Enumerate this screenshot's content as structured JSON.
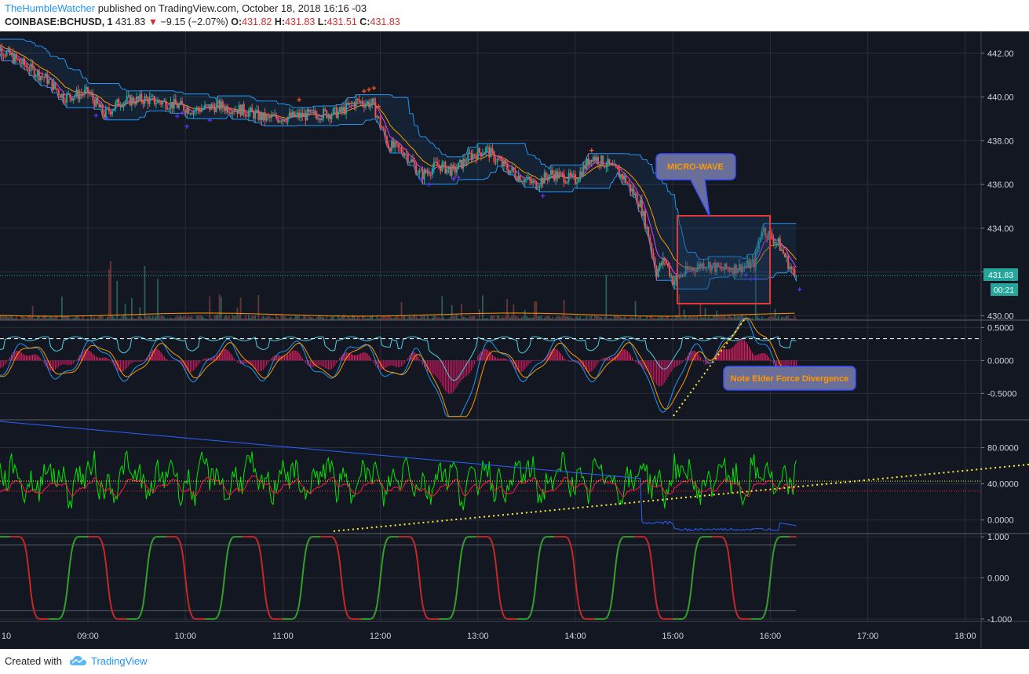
{
  "header": {
    "author": "TheHumbleWatcher",
    "published": "published on TradingView.com, October 18, 2018 16:16 -03",
    "symbol": "COINBASE:BCHUSD, 1",
    "last": "431.83",
    "change_icon": "down-triangle-icon",
    "change": "−9.15 (−2.07%)",
    "o_label": "O:",
    "o_value": "431.82",
    "h_label": "H:",
    "h_value": "431.83",
    "l_label": "L:",
    "l_value": "431.51",
    "c_label": "C:",
    "c_value": "431.83"
  },
  "footer": {
    "created_with": "Created with",
    "brand": "TradingView",
    "brand_icon": "tradingview-cloud-icon"
  },
  "annotations": {
    "micro_wave": "MICRO-WAVE",
    "divergence": "Note Elder Force Divergence"
  },
  "price_badge": {
    "value": "431.83",
    "timer": "00:21"
  },
  "colors": {
    "background": "#131722",
    "up": "#26a69a",
    "down": "#ef5350",
    "channel": "#2196f3",
    "annotation_text": "#ff9800",
    "callout_fill": "#6a6f9a",
    "highlight_box": "#e53935",
    "trendline": "#ffeb3b"
  },
  "chart_data": [
    {
      "type": "candlestick",
      "pane": "price",
      "x_ticks": [
        "10",
        "09:00",
        "10:00",
        "11:00",
        "12:00",
        "13:00",
        "14:00",
        "15:00",
        "16:00",
        "17:00",
        "18:00"
      ],
      "y_ticks": [
        "442.00",
        "440.00",
        "438.00",
        "436.00",
        "434.00",
        "432.00",
        "430.00"
      ],
      "ylim": [
        429.8,
        443.0
      ],
      "last_price": 431.83,
      "close_path": [
        {
          "t": "08:00",
          "y": 442.5
        },
        {
          "t": "08:20",
          "y": 441.5
        },
        {
          "t": "08:35",
          "y": 440.8
        },
        {
          "t": "08:45",
          "y": 440.0
        },
        {
          "t": "09:00",
          "y": 440.2
        },
        {
          "t": "09:10",
          "y": 439.2
        },
        {
          "t": "09:20",
          "y": 439.8
        },
        {
          "t": "09:35",
          "y": 439.9
        },
        {
          "t": "09:50",
          "y": 439.7
        },
        {
          "t": "10:05",
          "y": 439.4
        },
        {
          "t": "10:20",
          "y": 439.6
        },
        {
          "t": "10:35",
          "y": 439.4
        },
        {
          "t": "10:50",
          "y": 439.0
        },
        {
          "t": "11:05",
          "y": 439.1
        },
        {
          "t": "11:20",
          "y": 439.2
        },
        {
          "t": "11:35",
          "y": 439.3
        },
        {
          "t": "11:45",
          "y": 439.8
        },
        {
          "t": "11:55",
          "y": 439.7
        },
        {
          "t": "12:05",
          "y": 437.8
        },
        {
          "t": "12:15",
          "y": 437.5
        },
        {
          "t": "12:25",
          "y": 436.4
        },
        {
          "t": "12:35",
          "y": 436.9
        },
        {
          "t": "12:45",
          "y": 436.6
        },
        {
          "t": "12:55",
          "y": 437.3
        },
        {
          "t": "13:05",
          "y": 437.6
        },
        {
          "t": "13:15",
          "y": 436.9
        },
        {
          "t": "13:25",
          "y": 436.4
        },
        {
          "t": "13:35",
          "y": 436.0
        },
        {
          "t": "13:45",
          "y": 436.5
        },
        {
          "t": "14:00",
          "y": 436.2
        },
        {
          "t": "14:10",
          "y": 437.3
        },
        {
          "t": "14:20",
          "y": 436.9
        },
        {
          "t": "14:30",
          "y": 436.3
        },
        {
          "t": "14:40",
          "y": 435.1
        },
        {
          "t": "14:45",
          "y": 433.7
        },
        {
          "t": "14:50",
          "y": 432.0
        },
        {
          "t": "14:55",
          "y": 432.6
        },
        {
          "t": "15:00",
          "y": 431.6
        },
        {
          "t": "15:10",
          "y": 432.1
        },
        {
          "t": "15:20",
          "y": 432.4
        },
        {
          "t": "15:30",
          "y": 432.1
        },
        {
          "t": "15:40",
          "y": 432.2
        },
        {
          "t": "15:50",
          "y": 432.4
        },
        {
          "t": "15:55",
          "y": 434.0
        },
        {
          "t": "16:05",
          "y": 433.3
        },
        {
          "t": "16:15",
          "y": 431.8
        }
      ]
    },
    {
      "type": "line",
      "pane": "oscillator",
      "name": "Elder Force",
      "y_ticks": [
        "0.5000",
        "0.0000",
        "-0.5000"
      ],
      "ylim": [
        -0.9,
        0.6
      ]
    },
    {
      "type": "line",
      "pane": "oscillator",
      "y_ticks": [
        "80.0000",
        "40.0000",
        "0.0000"
      ],
      "ylim": [
        -15,
        110
      ]
    },
    {
      "type": "line",
      "pane": "oscillator",
      "y_ticks": [
        "1.000",
        "0.000",
        "-1.000"
      ],
      "ylim": [
        -1.06,
        1.06
      ]
    }
  ]
}
